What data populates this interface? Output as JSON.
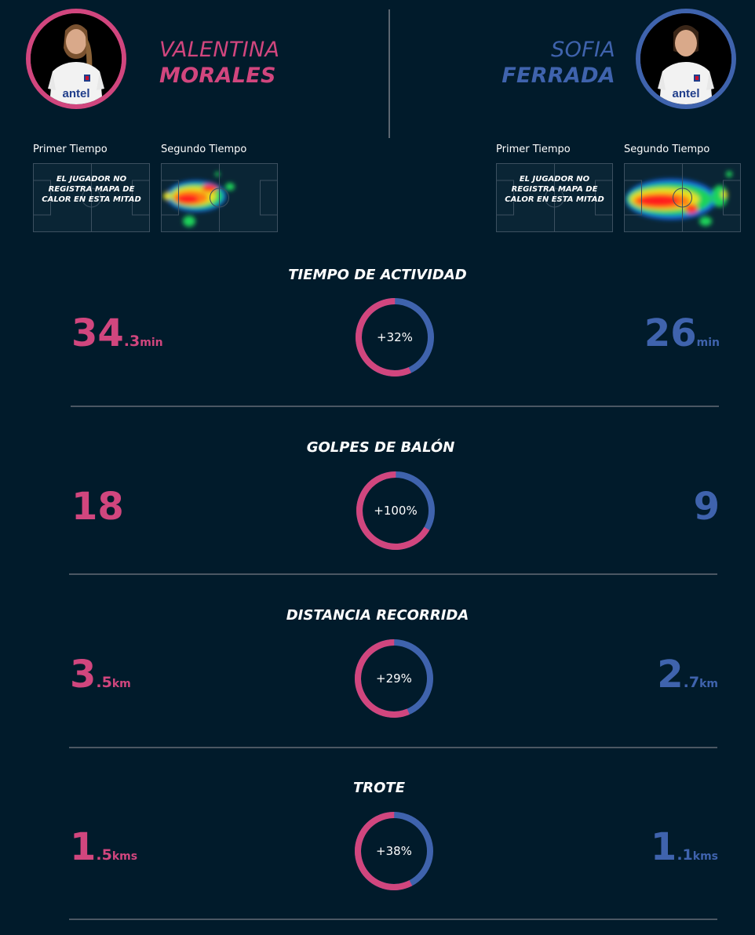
{
  "colors": {
    "background": "#011b2b",
    "player_left": "#d1467e",
    "player_right": "#3f63ad",
    "divider": "#4b5763"
  },
  "players": {
    "left": {
      "first_name": "VALENTINA",
      "last_name": "MORALES",
      "sponsor": "antel"
    },
    "right": {
      "first_name": "SOFIA",
      "last_name": "FERRADA",
      "sponsor": "antel"
    }
  },
  "heatmaps": {
    "left": {
      "first_half_label": "Primer Tiempo",
      "second_half_label": "Segundo Tiempo",
      "first_half_message": "EL JUGADOR NO REGISTRA MAPA DE CALOR EN ESTA MITAD"
    },
    "right": {
      "first_half_label": "Primer Tiempo",
      "second_half_label": "Segundo Tiempo",
      "first_half_message": "EL JUGADOR NO REGISTRA MAPA DE CALOR EN ESTA MITAD"
    }
  },
  "stats": [
    {
      "title": "TIEMPO DE ACTIVIDAD",
      "left_int": "34",
      "left_dec": ".3",
      "left_unit": "min",
      "right_int": "26",
      "right_dec": "",
      "right_unit": "min",
      "diff_label": "+32%",
      "left_share": 0.569
    },
    {
      "title": "GOLPES DE BALÓN",
      "left_int": "18",
      "left_dec": "",
      "left_unit": "",
      "right_int": "9",
      "right_dec": "",
      "right_unit": "",
      "diff_label": "+100%",
      "left_share": 0.667
    },
    {
      "title": "DISTANCIA RECORRIDA",
      "left_int": "3",
      "left_dec": ".5",
      "left_unit": "km",
      "right_int": "2",
      "right_dec": ".7",
      "right_unit": "km",
      "diff_label": "+29%",
      "left_share": 0.565
    },
    {
      "title": "TROTE",
      "left_int": "1",
      "left_dec": ".5",
      "left_unit": "kms",
      "right_int": "1",
      "right_dec": ".1",
      "right_unit": "kms",
      "diff_label": "+38%",
      "left_share": 0.577
    }
  ]
}
